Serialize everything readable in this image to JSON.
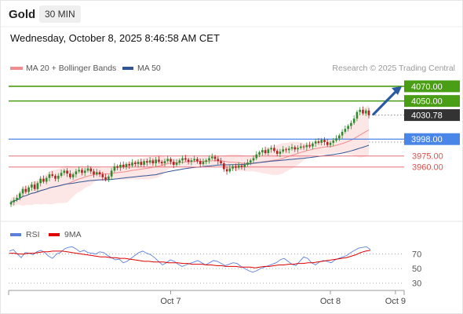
{
  "header": {
    "instrument": "Gold",
    "timeframe": "30 MIN",
    "datetime": "Wednesday, October 8, 2025 8:46:58 AM CET"
  },
  "legend": {
    "ma20_label": "MA 20 + Bollinger Bands",
    "ma50_label": "MA 50",
    "ma20_color": "#f28b8b",
    "ma50_color": "#2f5597",
    "credit": "Research © 2025 Trading Central"
  },
  "rsi_legend": {
    "rsi_label": "RSI",
    "ma9_label": "9MA",
    "rsi_color": "#5b7fdb",
    "ma9_color": "#e00000"
  },
  "colors": {
    "resistance": "#4a9e15",
    "pivot": "#4a86e8",
    "support": "#e8707a",
    "last": "#333333",
    "bull": "#2e8b2e",
    "bear": "#b22222",
    "arrow": "#2a5aa6"
  },
  "chart_data": [
    {
      "type": "candlestick",
      "title": "Gold",
      "timeframe": "30 MIN",
      "ylim": [
        3888,
        4086
      ],
      "x_ticks": [
        {
          "label": "Oct 7",
          "bar": 54
        },
        {
          "label": "Oct 8",
          "bar": 108
        },
        {
          "label": "Oct 9",
          "bar": 130
        }
      ],
      "levels": [
        {
          "label": "4070.00",
          "value": 4070.0,
          "role": "resistance"
        },
        {
          "label": "4050.00",
          "value": 4050.0,
          "role": "resistance"
        },
        {
          "label": "4030.78",
          "value": 4030.78,
          "role": "last"
        },
        {
          "label": "3998.00",
          "value": 3998.0,
          "role": "pivot"
        },
        {
          "label": "3975.00",
          "value": 3975.0,
          "role": "support"
        },
        {
          "label": "3960.00",
          "value": 3960.0,
          "role": "support"
        }
      ],
      "last_price": 4030.78,
      "projection": {
        "from": 4032,
        "to": 4070
      },
      "closes": [
        3912,
        3915,
        3918,
        3924,
        3930,
        3926,
        3932,
        3936,
        3930,
        3938,
        3944,
        3940,
        3945,
        3950,
        3948,
        3944,
        3948,
        3952,
        3955,
        3951,
        3946,
        3950,
        3954,
        3956,
        3952,
        3955,
        3958,
        3954,
        3950,
        3953,
        3950,
        3946,
        3943,
        3947,
        3955,
        3961,
        3959,
        3963,
        3960,
        3964,
        3962,
        3966,
        3964,
        3967,
        3963,
        3968,
        3966,
        3969,
        3965,
        3970,
        3967,
        3965,
        3968,
        3971,
        3967,
        3963,
        3966,
        3969,
        3972,
        3970,
        3967,
        3969,
        3971,
        3968,
        3964,
        3967,
        3969,
        3972,
        3974,
        3971,
        3968,
        3965,
        3957,
        3954,
        3958,
        3961,
        3959,
        3962,
        3960,
        3963,
        3966,
        3969,
        3972,
        3977,
        3980,
        3983,
        3979,
        3984,
        3986,
        3982,
        3978,
        3981,
        3984,
        3983,
        3985,
        3987,
        3984,
        3986,
        3988,
        3987,
        3990,
        3988,
        3992,
        3995,
        3993,
        3997,
        3994,
        3990,
        3993,
        3996,
        3999,
        4003,
        4008,
        4012,
        4016,
        4020,
        4026,
        4035,
        4038,
        4033,
        4037,
        4030.78
      ],
      "rsi": {
        "levels": [
          70,
          50,
          30
        ],
        "ylim": [
          20,
          90
        ],
        "rsi_values": [
          74,
          76,
          70,
          65,
          72,
          71,
          69,
          73,
          75,
          72,
          67,
          64,
          70,
          72,
          77,
          79,
          80,
          77,
          73,
          75,
          72,
          71,
          70,
          73,
          72,
          68,
          65,
          62,
          63,
          58,
          60,
          64,
          68,
          72,
          74,
          71,
          69,
          65,
          60,
          55,
          58,
          62,
          60,
          56,
          53,
          55,
          57,
          59,
          61,
          58,
          55,
          58,
          61,
          60,
          57,
          54,
          56,
          58,
          57,
          53,
          50,
          47,
          45,
          47,
          50,
          52,
          54,
          56,
          58,
          62,
          64,
          60,
          56,
          54,
          60,
          66,
          64,
          58,
          55,
          59,
          61,
          60,
          58,
          62,
          64,
          66,
          68,
          72,
          75,
          78,
          79,
          80,
          76
        ],
        "ma9_values": [
          71,
          71,
          70,
          70,
          71,
          71,
          72,
          73,
          73,
          74,
          74,
          74,
          73,
          72,
          71,
          70,
          69,
          68,
          67,
          66,
          66,
          65,
          65,
          64,
          64,
          63,
          62,
          61,
          60,
          60,
          59,
          59,
          59,
          58,
          58,
          58,
          57,
          57,
          56,
          56,
          56,
          55,
          55,
          54,
          54,
          53,
          53,
          53,
          52,
          52,
          52,
          51,
          52,
          53,
          53,
          54,
          55,
          55,
          56,
          56,
          57,
          57,
          58,
          58,
          59,
          60,
          61,
          62,
          63,
          64,
          65,
          67,
          69,
          72,
          74,
          75
        ]
      }
    }
  ]
}
